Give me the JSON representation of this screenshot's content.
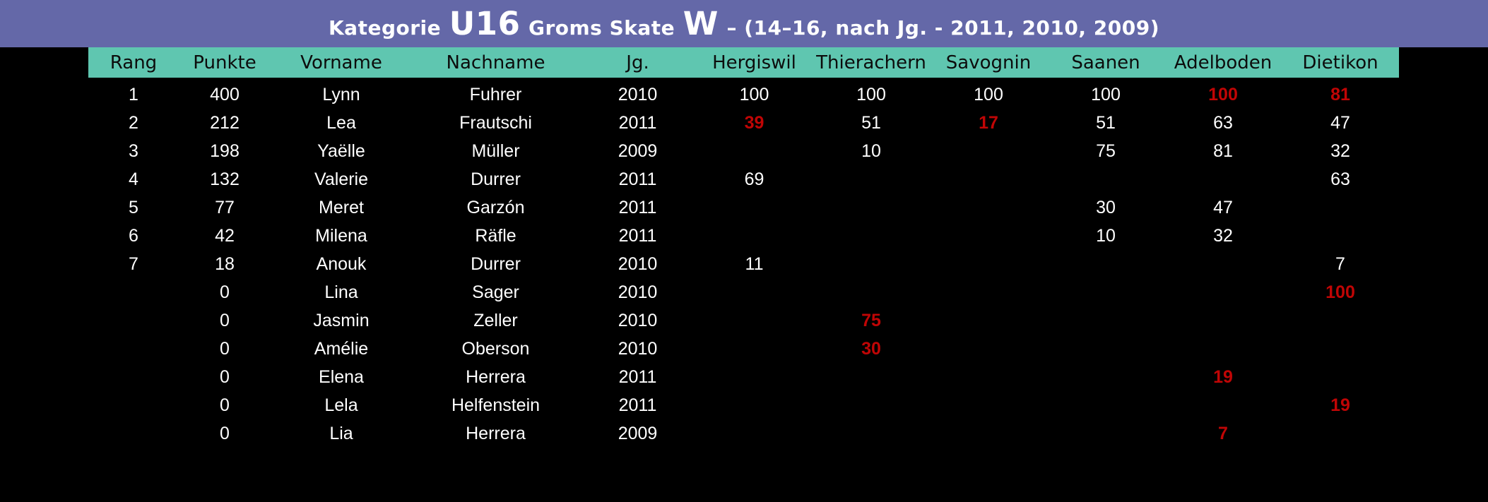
{
  "colors": {
    "background": "#000000",
    "title_bar": "#6468A8",
    "header_bg": "#5FC6B0",
    "highlight_red": "#C00505",
    "text": "#FFFFFF",
    "header_text": "#0C0C0C"
  },
  "title": {
    "prefix": "Kategorie",
    "category": "U16",
    "middle": "Groms Skate",
    "gender": "W",
    "suffix": "– (14–16, nach Jg. - 2011, 2010, 2009)"
  },
  "table": {
    "columns": [
      "Rang",
      "Punkte",
      "Vorname",
      "Nachname",
      "Jg.",
      "Hergiswil",
      "Thierachern",
      "Savognin",
      "Saanen",
      "Adelboden",
      "Dietikon"
    ],
    "rows": [
      {
        "cells": [
          {
            "t": "1"
          },
          {
            "t": "400"
          },
          {
            "t": "Lynn"
          },
          {
            "t": "Fuhrer"
          },
          {
            "t": "2010"
          },
          {
            "t": "100"
          },
          {
            "t": "100"
          },
          {
            "t": "100"
          },
          {
            "t": "100"
          },
          {
            "t": "100",
            "red": true
          },
          {
            "t": "81",
            "red": true
          }
        ]
      },
      {
        "cells": [
          {
            "t": "2"
          },
          {
            "t": "212"
          },
          {
            "t": "Lea"
          },
          {
            "t": "Frautschi"
          },
          {
            "t": "2011"
          },
          {
            "t": "39",
            "red": true
          },
          {
            "t": "51"
          },
          {
            "t": "17",
            "red": true
          },
          {
            "t": "51"
          },
          {
            "t": "63"
          },
          {
            "t": "47"
          }
        ]
      },
      {
        "cells": [
          {
            "t": "3"
          },
          {
            "t": "198"
          },
          {
            "t": "Yaëlle"
          },
          {
            "t": "Müller"
          },
          {
            "t": "2009"
          },
          {
            "t": ""
          },
          {
            "t": "10"
          },
          {
            "t": ""
          },
          {
            "t": "75"
          },
          {
            "t": "81"
          },
          {
            "t": "32"
          }
        ]
      },
      {
        "cells": [
          {
            "t": "4"
          },
          {
            "t": "132"
          },
          {
            "t": "Valerie"
          },
          {
            "t": "Durrer"
          },
          {
            "t": "2011"
          },
          {
            "t": "69"
          },
          {
            "t": ""
          },
          {
            "t": ""
          },
          {
            "t": ""
          },
          {
            "t": ""
          },
          {
            "t": "63"
          }
        ]
      },
      {
        "cells": [
          {
            "t": "5"
          },
          {
            "t": "77"
          },
          {
            "t": "Meret"
          },
          {
            "t": "Garzón"
          },
          {
            "t": "2011"
          },
          {
            "t": ""
          },
          {
            "t": ""
          },
          {
            "t": ""
          },
          {
            "t": "30"
          },
          {
            "t": "47"
          },
          {
            "t": ""
          }
        ]
      },
      {
        "cells": [
          {
            "t": "6"
          },
          {
            "t": "42"
          },
          {
            "t": "Milena"
          },
          {
            "t": "Räfle"
          },
          {
            "t": "2011"
          },
          {
            "t": ""
          },
          {
            "t": ""
          },
          {
            "t": ""
          },
          {
            "t": "10"
          },
          {
            "t": "32"
          },
          {
            "t": ""
          }
        ]
      },
      {
        "cells": [
          {
            "t": "7"
          },
          {
            "t": "18"
          },
          {
            "t": "Anouk"
          },
          {
            "t": "Durrer"
          },
          {
            "t": "2010"
          },
          {
            "t": "11"
          },
          {
            "t": ""
          },
          {
            "t": ""
          },
          {
            "t": ""
          },
          {
            "t": ""
          },
          {
            "t": "7"
          }
        ]
      },
      {
        "cells": [
          {
            "t": ""
          },
          {
            "t": "0"
          },
          {
            "t": "Lina"
          },
          {
            "t": "Sager"
          },
          {
            "t": "2010"
          },
          {
            "t": ""
          },
          {
            "t": ""
          },
          {
            "t": ""
          },
          {
            "t": ""
          },
          {
            "t": ""
          },
          {
            "t": "100",
            "red": true
          }
        ]
      },
      {
        "cells": [
          {
            "t": ""
          },
          {
            "t": "0"
          },
          {
            "t": "Jasmin"
          },
          {
            "t": "Zeller"
          },
          {
            "t": "2010"
          },
          {
            "t": ""
          },
          {
            "t": "75",
            "red": true
          },
          {
            "t": ""
          },
          {
            "t": ""
          },
          {
            "t": ""
          },
          {
            "t": ""
          }
        ]
      },
      {
        "cells": [
          {
            "t": ""
          },
          {
            "t": "0"
          },
          {
            "t": "Amélie"
          },
          {
            "t": "Oberson"
          },
          {
            "t": "2010"
          },
          {
            "t": ""
          },
          {
            "t": "30",
            "red": true
          },
          {
            "t": ""
          },
          {
            "t": ""
          },
          {
            "t": ""
          },
          {
            "t": ""
          }
        ]
      },
      {
        "cells": [
          {
            "t": ""
          },
          {
            "t": "0"
          },
          {
            "t": "Elena"
          },
          {
            "t": "Herrera"
          },
          {
            "t": "2011"
          },
          {
            "t": ""
          },
          {
            "t": ""
          },
          {
            "t": ""
          },
          {
            "t": ""
          },
          {
            "t": "19",
            "red": true
          },
          {
            "t": ""
          }
        ]
      },
      {
        "cells": [
          {
            "t": ""
          },
          {
            "t": "0"
          },
          {
            "t": "Lela"
          },
          {
            "t": "Helfenstein"
          },
          {
            "t": "2011"
          },
          {
            "t": ""
          },
          {
            "t": ""
          },
          {
            "t": ""
          },
          {
            "t": ""
          },
          {
            "t": ""
          },
          {
            "t": "19",
            "red": true
          }
        ]
      },
      {
        "cells": [
          {
            "t": ""
          },
          {
            "t": "0"
          },
          {
            "t": "Lia"
          },
          {
            "t": "Herrera"
          },
          {
            "t": "2009"
          },
          {
            "t": ""
          },
          {
            "t": ""
          },
          {
            "t": ""
          },
          {
            "t": ""
          },
          {
            "t": "7",
            "red": true
          },
          {
            "t": ""
          }
        ]
      }
    ]
  }
}
